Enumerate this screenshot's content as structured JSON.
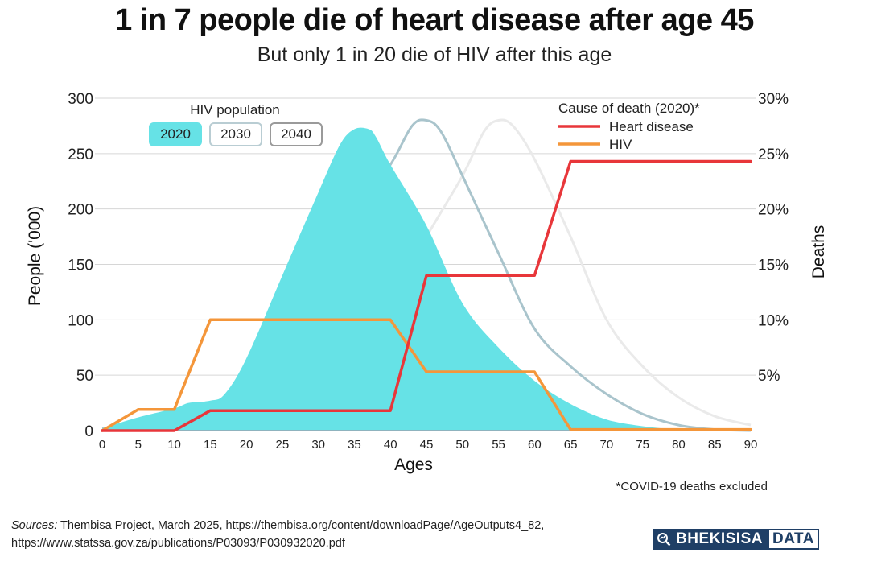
{
  "header": {
    "title": "1 in 7 people die of heart disease after age 45",
    "subtitle": "But only 1 in 20 die of HIV after this age"
  },
  "controls": {
    "legend_title": "HIV population",
    "buttons": [
      {
        "label": "2020",
        "active": true
      },
      {
        "label": "2030",
        "active": false
      },
      {
        "label": "2040",
        "active": false
      }
    ]
  },
  "footer": {
    "note": "*COVID-19 deaths excluded",
    "sources_label": "Sources:",
    "sources_line1": " Thembisa Project, March 2025, https://thembisa.org/content/downloadPage/AgeOutputs4_82,",
    "sources_line2": "https://www.statssa.gov.za/publications/P03093/P030932020.pdf",
    "logo_part1": "BHEKISISA",
    "logo_part2": "DATA"
  },
  "colors": {
    "pop2020": "#66e2e6",
    "pop2030": "#a9c4cc",
    "pop2040": "#eaeaea",
    "heart": "#e8363a",
    "hiv": "#f4963a",
    "brand": "#1f3f66"
  },
  "chart_data": {
    "type": "area",
    "xlabel": "Ages",
    "ylabel": "People ('000)",
    "y2label": "Deaths",
    "x_ticks": [
      0,
      5,
      10,
      15,
      20,
      25,
      30,
      35,
      40,
      45,
      50,
      55,
      60,
      65,
      70,
      75,
      80,
      85,
      90
    ],
    "xlim": [
      0,
      90
    ],
    "ylim": [
      0,
      300
    ],
    "y_ticks": [
      0,
      50,
      100,
      150,
      200,
      250,
      300
    ],
    "y2lim": [
      0,
      0.3
    ],
    "y2_ticks": [
      "5%",
      "10%",
      "15%",
      "20%",
      "25%",
      "30%"
    ],
    "grid": true,
    "legend": {
      "title": "Cause of death (2020)*",
      "position": "top-right",
      "entries": [
        "Heart disease",
        "HIV"
      ]
    },
    "population_series": [
      {
        "name": "2020",
        "x": [
          0,
          5,
          10,
          12,
          15,
          17,
          20,
          25,
          30,
          33,
          35,
          37,
          38,
          40,
          45,
          50,
          55,
          60,
          65,
          70,
          75,
          80,
          85,
          90
        ],
        "values": [
          2,
          12,
          20,
          25,
          27,
          33,
          65,
          140,
          215,
          258,
          272,
          272,
          265,
          240,
          185,
          115,
          75,
          45,
          24,
          10,
          4,
          1,
          0.5,
          0
        ]
      },
      {
        "name": "2030",
        "x": [
          0,
          5,
          10,
          15,
          18,
          20,
          22,
          25,
          30,
          32,
          35,
          40,
          43,
          45,
          47,
          50,
          55,
          60,
          65,
          70,
          75,
          80,
          85,
          90
        ],
        "values": [
          2,
          5,
          7,
          12,
          25,
          50,
          80,
          105,
          140,
          160,
          195,
          240,
          275,
          280,
          270,
          230,
          160,
          92,
          58,
          33,
          15,
          5,
          1,
          0
        ]
      },
      {
        "name": "2040",
        "x": [
          0,
          5,
          10,
          15,
          20,
          25,
          28,
          30,
          33,
          35,
          40,
          43,
          45,
          50,
          53,
          55,
          57,
          60,
          65,
          70,
          75,
          80,
          85,
          90
        ],
        "values": [
          1,
          2,
          3,
          4,
          6,
          12,
          30,
          60,
          90,
          98,
          128,
          150,
          175,
          230,
          270,
          280,
          275,
          245,
          175,
          100,
          58,
          30,
          13,
          5
        ]
      }
    ],
    "death_series": [
      {
        "name": "Heart disease",
        "x": [
          0,
          10,
          15,
          40,
          45,
          60,
          65,
          90
        ],
        "values": [
          0,
          0,
          0.018,
          0.018,
          0.14,
          0.14,
          0.243,
          0.243
        ]
      },
      {
        "name": "HIV",
        "x": [
          0,
          5,
          10,
          15,
          40,
          45,
          60,
          65,
          90
        ],
        "values": [
          0,
          0.019,
          0.019,
          0.1,
          0.1,
          0.053,
          0.053,
          0.001,
          0.001
        ]
      }
    ]
  }
}
